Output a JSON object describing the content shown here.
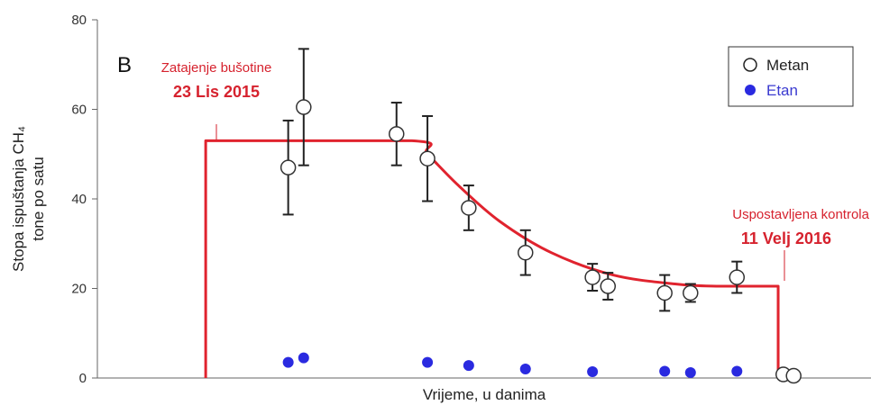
{
  "chart_data": {
    "type": "scatter",
    "panel_label": "B",
    "xlabel": "Vrijeme, u danima",
    "ylabel_line1": "Stopa ispuštanja CH₄",
    "ylabel_line2": "tone po satu",
    "ylim": [
      0,
      80
    ],
    "yticks": [
      "0",
      "20",
      "40",
      "60",
      "80"
    ],
    "xlim": [
      0,
      150
    ],
    "grid": false,
    "legend_position": "top-right",
    "legend": [
      {
        "name": "Metan",
        "marker": "open-circle",
        "color": "#111111"
      },
      {
        "name": "Etan",
        "marker": "filled-circle",
        "color": "#2a2ae0"
      }
    ],
    "annotations": [
      {
        "label": "Zatajenje bušotine",
        "date": "23 Lis 2015",
        "x": 21,
        "color": "#d6222e"
      },
      {
        "label": "Uspostavljena kontrola",
        "date": "11 Velj 2016",
        "x": 132,
        "color": "#d6222e"
      }
    ],
    "fit_line": {
      "color": "#e0232e",
      "points": [
        [
          21,
          0
        ],
        [
          21,
          53
        ],
        [
          61,
          53
        ],
        [
          64,
          50
        ],
        [
          70,
          43
        ],
        [
          78,
          35
        ],
        [
          88,
          28
        ],
        [
          100,
          23
        ],
        [
          112,
          21
        ],
        [
          120,
          20.5
        ],
        [
          132,
          20.5
        ],
        [
          132,
          0
        ]
      ]
    },
    "series": [
      {
        "name": "Metan",
        "points": [
          {
            "x": 37,
            "y": 47,
            "err": 10.5
          },
          {
            "x": 40,
            "y": 60.5,
            "err": 13
          },
          {
            "x": 58,
            "y": 54.5,
            "err": 7
          },
          {
            "x": 64,
            "y": 49,
            "err": 9.5
          },
          {
            "x": 72,
            "y": 38,
            "err": 5
          },
          {
            "x": 83,
            "y": 28,
            "err": 5
          },
          {
            "x": 96,
            "y": 22.5,
            "err": 3
          },
          {
            "x": 99,
            "y": 20.5,
            "err": 3
          },
          {
            "x": 110,
            "y": 19,
            "err": 4
          },
          {
            "x": 115,
            "y": 19,
            "err": 2
          },
          {
            "x": 124,
            "y": 22.5,
            "err": 3.5
          },
          {
            "x": 133,
            "y": 0.8,
            "err": 0
          },
          {
            "x": 135,
            "y": 0.5,
            "err": 0
          }
        ]
      },
      {
        "name": "Etan",
        "points": [
          {
            "x": 37,
            "y": 3.5
          },
          {
            "x": 40,
            "y": 4.5
          },
          {
            "x": 64,
            "y": 3.5
          },
          {
            "x": 72,
            "y": 2.8
          },
          {
            "x": 83,
            "y": 2
          },
          {
            "x": 96,
            "y": 1.4
          },
          {
            "x": 110,
            "y": 1.5
          },
          {
            "x": 115,
            "y": 1.2
          },
          {
            "x": 124,
            "y": 1.5
          }
        ]
      }
    ]
  }
}
